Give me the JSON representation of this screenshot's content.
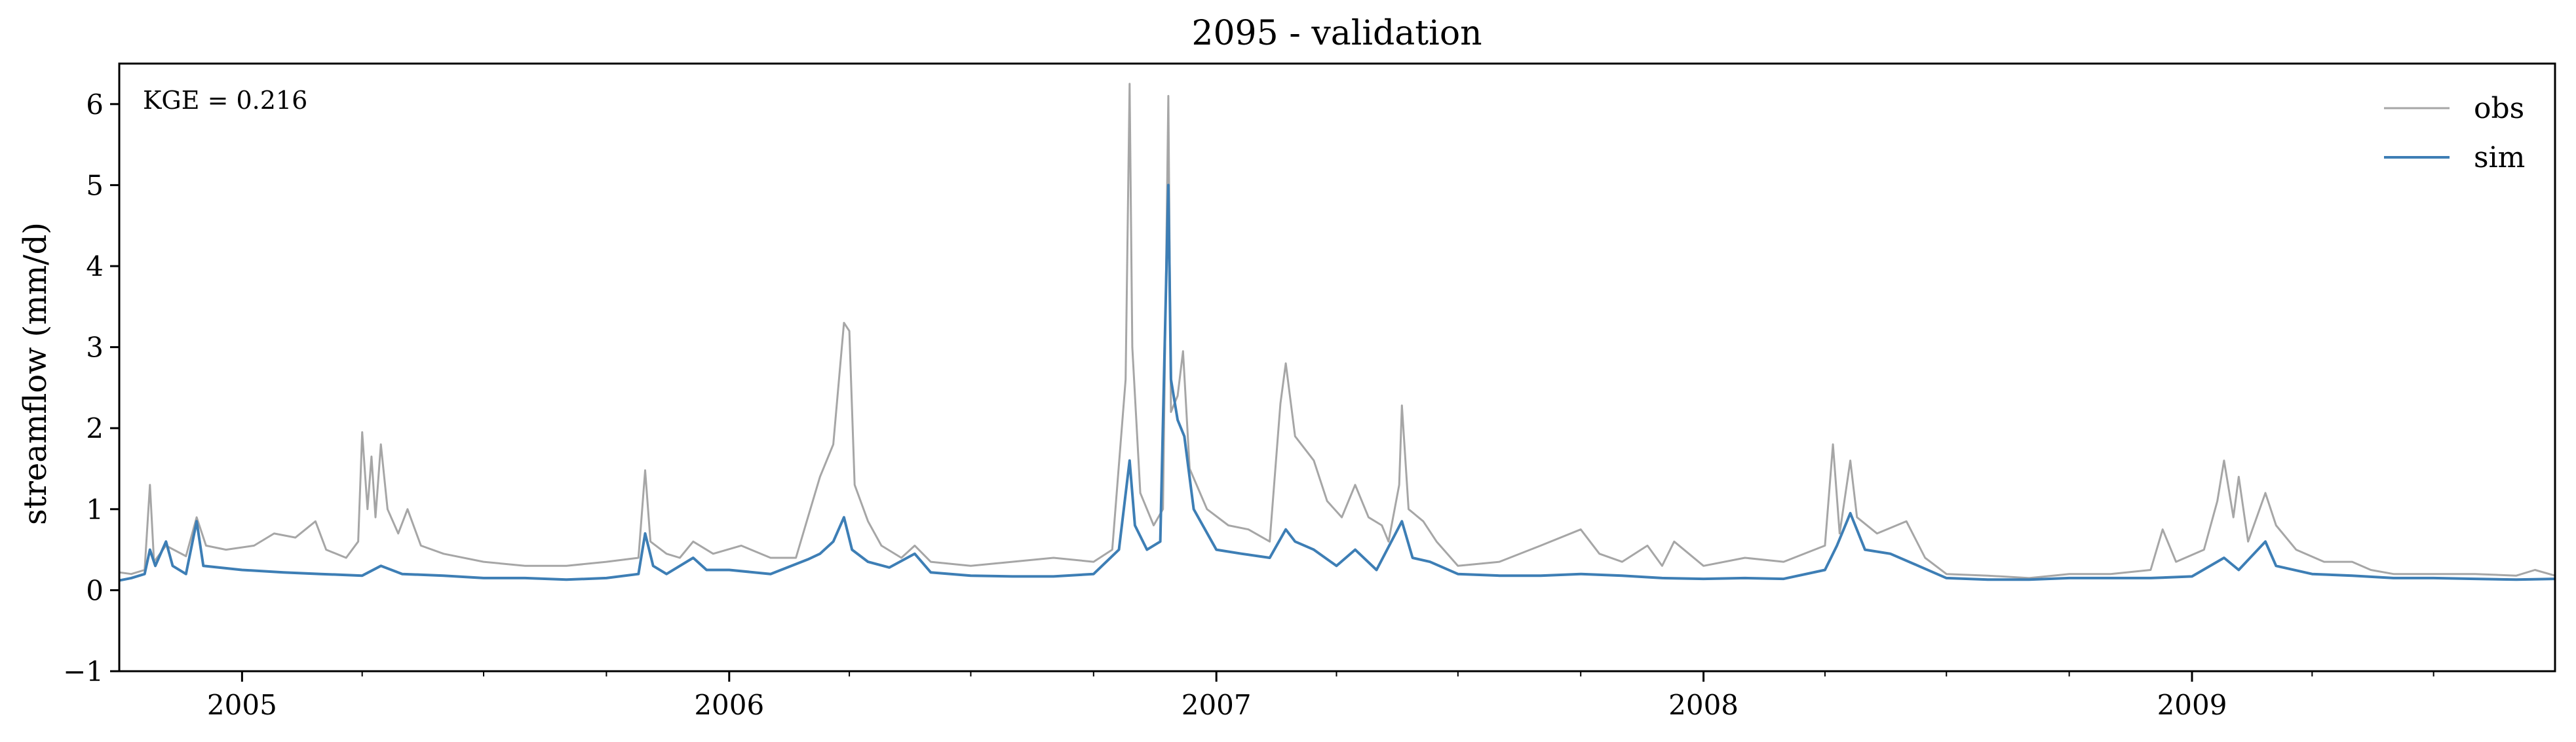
{
  "chart_data": {
    "type": "line",
    "title": "2095 - validation",
    "xlabel": "",
    "ylabel": "streamflow (mm/d)",
    "annotation": "KGE = 0.216",
    "xlim": [
      "2004-10-01",
      "2009-09-30"
    ],
    "ylim": [
      -1,
      6.5
    ],
    "yticks": [
      -1,
      0,
      1,
      2,
      3,
      4,
      5,
      6
    ],
    "ytick_labels": [
      "−1",
      "0",
      "1",
      "2",
      "3",
      "4",
      "5",
      "6"
    ],
    "xticks": [
      "2005-01-01",
      "2006-01-01",
      "2007-01-01",
      "2008-01-01",
      "2009-01-01"
    ],
    "xtick_labels": [
      "2005",
      "2006",
      "2007",
      "2008",
      "2009"
    ],
    "grid": false,
    "legend": "top-right",
    "series": [
      {
        "name": "obs",
        "color": "#a6a6a6",
        "points": [
          [
            "2004-10-01",
            0.22
          ],
          [
            "2004-10-10",
            0.2
          ],
          [
            "2004-10-20",
            0.25
          ],
          [
            "2004-10-24",
            1.3
          ],
          [
            "2004-10-27",
            0.35
          ],
          [
            "2004-11-05",
            0.55
          ],
          [
            "2004-11-20",
            0.42
          ],
          [
            "2004-11-28",
            0.9
          ],
          [
            "2004-12-05",
            0.55
          ],
          [
            "2004-12-20",
            0.5
          ],
          [
            "2005-01-10",
            0.55
          ],
          [
            "2005-01-25",
            0.7
          ],
          [
            "2005-02-10",
            0.65
          ],
          [
            "2005-02-25",
            0.85
          ],
          [
            "2005-03-05",
            0.5
          ],
          [
            "2005-03-20",
            0.4
          ],
          [
            "2005-03-29",
            0.6
          ],
          [
            "2005-04-01",
            1.95
          ],
          [
            "2005-04-05",
            1.0
          ],
          [
            "2005-04-08",
            1.65
          ],
          [
            "2005-04-11",
            0.9
          ],
          [
            "2005-04-15",
            1.8
          ],
          [
            "2005-04-20",
            1.0
          ],
          [
            "2005-04-28",
            0.7
          ],
          [
            "2005-05-05",
            1.0
          ],
          [
            "2005-05-15",
            0.55
          ],
          [
            "2005-06-01",
            0.45
          ],
          [
            "2005-07-01",
            0.35
          ],
          [
            "2005-08-01",
            0.3
          ],
          [
            "2005-09-01",
            0.3
          ],
          [
            "2005-10-01",
            0.35
          ],
          [
            "2005-10-25",
            0.4
          ],
          [
            "2005-10-30",
            1.48
          ],
          [
            "2005-11-03",
            0.6
          ],
          [
            "2005-11-15",
            0.45
          ],
          [
            "2005-11-25",
            0.4
          ],
          [
            "2005-12-05",
            0.6
          ],
          [
            "2005-12-20",
            0.45
          ],
          [
            "2006-01-10",
            0.55
          ],
          [
            "2006-02-01",
            0.4
          ],
          [
            "2006-02-20",
            0.4
          ],
          [
            "2006-03-01",
            0.9
          ],
          [
            "2006-03-10",
            1.4
          ],
          [
            "2006-03-20",
            1.8
          ],
          [
            "2006-03-28",
            3.3
          ],
          [
            "2006-04-01",
            3.2
          ],
          [
            "2006-04-05",
            1.3
          ],
          [
            "2006-04-15",
            0.85
          ],
          [
            "2006-04-25",
            0.55
          ],
          [
            "2006-05-10",
            0.4
          ],
          [
            "2006-05-20",
            0.55
          ],
          [
            "2006-06-01",
            0.35
          ],
          [
            "2006-07-01",
            0.3
          ],
          [
            "2006-08-01",
            0.35
          ],
          [
            "2006-09-01",
            0.4
          ],
          [
            "2006-10-01",
            0.35
          ],
          [
            "2006-10-15",
            0.5
          ],
          [
            "2006-10-25",
            2.6
          ],
          [
            "2006-10-28",
            6.25
          ],
          [
            "2006-10-30",
            3.0
          ],
          [
            "2006-11-05",
            1.2
          ],
          [
            "2006-11-15",
            0.8
          ],
          [
            "2006-11-22",
            1.0
          ],
          [
            "2006-11-26",
            6.1
          ],
          [
            "2006-11-28",
            2.2
          ],
          [
            "2006-12-03",
            2.4
          ],
          [
            "2006-12-07",
            2.95
          ],
          [
            "2006-12-12",
            1.5
          ],
          [
            "2006-12-25",
            1.0
          ],
          [
            "2007-01-10",
            0.8
          ],
          [
            "2007-01-25",
            0.75
          ],
          [
            "2007-02-10",
            0.6
          ],
          [
            "2007-02-18",
            2.3
          ],
          [
            "2007-02-22",
            2.8
          ],
          [
            "2007-03-01",
            1.9
          ],
          [
            "2007-03-15",
            1.6
          ],
          [
            "2007-03-25",
            1.1
          ],
          [
            "2007-04-05",
            0.9
          ],
          [
            "2007-04-15",
            1.3
          ],
          [
            "2007-04-25",
            0.9
          ],
          [
            "2007-05-05",
            0.8
          ],
          [
            "2007-05-10",
            0.6
          ],
          [
            "2007-05-18",
            1.3
          ],
          [
            "2007-05-20",
            2.28
          ],
          [
            "2007-05-25",
            1.0
          ],
          [
            "2007-06-05",
            0.85
          ],
          [
            "2007-06-15",
            0.6
          ],
          [
            "2007-07-01",
            0.3
          ],
          [
            "2007-08-01",
            0.35
          ],
          [
            "2007-09-01",
            0.55
          ],
          [
            "2007-10-01",
            0.75
          ],
          [
            "2007-10-15",
            0.45
          ],
          [
            "2007-11-01",
            0.35
          ],
          [
            "2007-11-20",
            0.55
          ],
          [
            "2007-12-01",
            0.3
          ],
          [
            "2007-12-10",
            0.6
          ],
          [
            "2008-01-01",
            0.3
          ],
          [
            "2008-02-01",
            0.4
          ],
          [
            "2008-03-01",
            0.35
          ],
          [
            "2008-04-01",
            0.55
          ],
          [
            "2008-04-07",
            1.8
          ],
          [
            "2008-04-12",
            0.7
          ],
          [
            "2008-04-20",
            1.6
          ],
          [
            "2008-04-25",
            0.9
          ],
          [
            "2008-05-10",
            0.7
          ],
          [
            "2008-06-01",
            0.85
          ],
          [
            "2008-06-15",
            0.4
          ],
          [
            "2008-07-01",
            0.2
          ],
          [
            "2008-08-01",
            0.18
          ],
          [
            "2008-09-01",
            0.15
          ],
          [
            "2008-10-01",
            0.2
          ],
          [
            "2008-11-01",
            0.2
          ],
          [
            "2008-12-01",
            0.25
          ],
          [
            "2008-12-10",
            0.75
          ],
          [
            "2008-12-20",
            0.35
          ],
          [
            "2009-01-10",
            0.5
          ],
          [
            "2009-01-20",
            1.1
          ],
          [
            "2009-01-25",
            1.6
          ],
          [
            "2009-02-01",
            0.9
          ],
          [
            "2009-02-05",
            1.4
          ],
          [
            "2009-02-12",
            0.6
          ],
          [
            "2009-02-25",
            1.2
          ],
          [
            "2009-03-05",
            0.8
          ],
          [
            "2009-03-20",
            0.5
          ],
          [
            "2009-04-10",
            0.35
          ],
          [
            "2009-05-01",
            0.35
          ],
          [
            "2009-05-15",
            0.25
          ],
          [
            "2009-06-01",
            0.2
          ],
          [
            "2009-07-01",
            0.2
          ],
          [
            "2009-08-01",
            0.2
          ],
          [
            "2009-09-01",
            0.18
          ],
          [
            "2009-09-15",
            0.25
          ],
          [
            "2009-09-30",
            0.18
          ]
        ]
      },
      {
        "name": "sim",
        "color": "#3d7eb5",
        "points": [
          [
            "2004-10-01",
            0.12
          ],
          [
            "2004-10-10",
            0.15
          ],
          [
            "2004-10-20",
            0.2
          ],
          [
            "2004-10-24",
            0.5
          ],
          [
            "2004-10-28",
            0.3
          ],
          [
            "2004-11-05",
            0.6
          ],
          [
            "2004-11-10",
            0.3
          ],
          [
            "2004-11-20",
            0.2
          ],
          [
            "2004-11-28",
            0.85
          ],
          [
            "2004-12-03",
            0.3
          ],
          [
            "2005-01-01",
            0.25
          ],
          [
            "2005-02-01",
            0.22
          ],
          [
            "2005-03-01",
            0.2
          ],
          [
            "2005-04-01",
            0.18
          ],
          [
            "2005-04-15",
            0.3
          ],
          [
            "2005-05-01",
            0.2
          ],
          [
            "2005-06-01",
            0.18
          ],
          [
            "2005-07-01",
            0.15
          ],
          [
            "2005-08-01",
            0.15
          ],
          [
            "2005-09-01",
            0.13
          ],
          [
            "2005-10-01",
            0.15
          ],
          [
            "2005-10-25",
            0.2
          ],
          [
            "2005-10-30",
            0.7
          ],
          [
            "2005-11-05",
            0.3
          ],
          [
            "2005-11-15",
            0.2
          ],
          [
            "2005-12-05",
            0.4
          ],
          [
            "2005-12-15",
            0.25
          ],
          [
            "2006-01-01",
            0.25
          ],
          [
            "2006-02-01",
            0.2
          ],
          [
            "2006-03-01",
            0.38
          ],
          [
            "2006-03-10",
            0.45
          ],
          [
            "2006-03-20",
            0.6
          ],
          [
            "2006-03-28",
            0.9
          ],
          [
            "2006-04-03",
            0.5
          ],
          [
            "2006-04-15",
            0.35
          ],
          [
            "2006-05-01",
            0.28
          ],
          [
            "2006-05-20",
            0.45
          ],
          [
            "2006-06-01",
            0.22
          ],
          [
            "2006-07-01",
            0.18
          ],
          [
            "2006-08-01",
            0.17
          ],
          [
            "2006-09-01",
            0.17
          ],
          [
            "2006-10-01",
            0.2
          ],
          [
            "2006-10-20",
            0.5
          ],
          [
            "2006-10-28",
            1.6
          ],
          [
            "2006-11-01",
            0.8
          ],
          [
            "2006-11-10",
            0.5
          ],
          [
            "2006-11-20",
            0.6
          ],
          [
            "2006-11-26",
            5.0
          ],
          [
            "2006-11-28",
            2.6
          ],
          [
            "2006-12-03",
            2.1
          ],
          [
            "2006-12-08",
            1.9
          ],
          [
            "2006-12-15",
            1.0
          ],
          [
            "2007-01-01",
            0.5
          ],
          [
            "2007-01-20",
            0.45
          ],
          [
            "2007-02-10",
            0.4
          ],
          [
            "2007-02-22",
            0.75
          ],
          [
            "2007-03-01",
            0.6
          ],
          [
            "2007-03-15",
            0.5
          ],
          [
            "2007-04-01",
            0.3
          ],
          [
            "2007-04-15",
            0.5
          ],
          [
            "2007-05-01",
            0.25
          ],
          [
            "2007-05-20",
            0.85
          ],
          [
            "2007-05-28",
            0.4
          ],
          [
            "2007-06-10",
            0.35
          ],
          [
            "2007-07-01",
            0.2
          ],
          [
            "2007-08-01",
            0.18
          ],
          [
            "2007-09-01",
            0.18
          ],
          [
            "2007-10-01",
            0.2
          ],
          [
            "2007-11-01",
            0.18
          ],
          [
            "2007-12-01",
            0.15
          ],
          [
            "2008-01-01",
            0.14
          ],
          [
            "2008-02-01",
            0.15
          ],
          [
            "2008-03-01",
            0.14
          ],
          [
            "2008-04-01",
            0.25
          ],
          [
            "2008-04-10",
            0.55
          ],
          [
            "2008-04-20",
            0.95
          ],
          [
            "2008-05-01",
            0.5
          ],
          [
            "2008-05-20",
            0.45
          ],
          [
            "2008-06-10",
            0.3
          ],
          [
            "2008-07-01",
            0.15
          ],
          [
            "2008-08-01",
            0.13
          ],
          [
            "2008-09-01",
            0.13
          ],
          [
            "2008-10-01",
            0.15
          ],
          [
            "2008-11-01",
            0.15
          ],
          [
            "2008-12-01",
            0.15
          ],
          [
            "2009-01-01",
            0.17
          ],
          [
            "2009-01-25",
            0.4
          ],
          [
            "2009-02-05",
            0.25
          ],
          [
            "2009-02-25",
            0.6
          ],
          [
            "2009-03-05",
            0.3
          ],
          [
            "2009-04-01",
            0.2
          ],
          [
            "2009-05-01",
            0.18
          ],
          [
            "2009-06-01",
            0.15
          ],
          [
            "2009-07-01",
            0.15
          ],
          [
            "2009-08-01",
            0.14
          ],
          [
            "2009-09-01",
            0.13
          ],
          [
            "2009-09-30",
            0.14
          ]
        ]
      }
    ]
  }
}
